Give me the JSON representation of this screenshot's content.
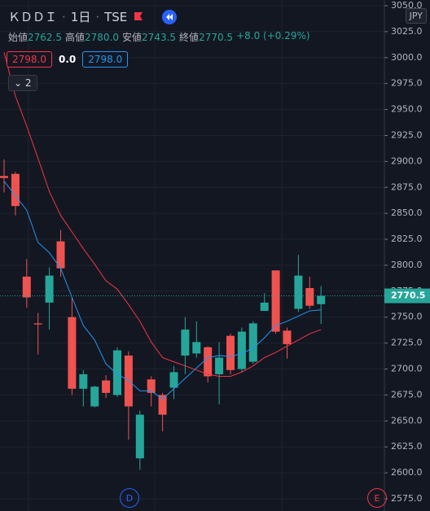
{
  "chart_data": {
    "type": "candlestick",
    "symbol": "ＫＤＤＩ",
    "interval": "1日",
    "exchange": "TSE",
    "ohlc_legend": [
      {
        "label": "始値",
        "value": "2762.5"
      },
      {
        "label": "高値",
        "value": "2780.0"
      },
      {
        "label": "安値",
        "value": "2743.5"
      },
      {
        "label": "終値",
        "value": "2770.5"
      }
    ],
    "change": "+8.0 (+0.29%)",
    "indicator_values": [
      "2798.0",
      "0.0",
      "2798.0"
    ],
    "collapsed_count": "2",
    "currency": "JPY",
    "event_markers": [
      "D",
      "E"
    ],
    "up_color": "#26a69a",
    "down_color": "#ef5350",
    "open": [
      2886,
      2888,
      2789,
      2744,
      2764,
      2823,
      2750,
      2681,
      2664,
      2689,
      2675,
      2713,
      2614,
      2690,
      2675,
      2682,
      2713,
      2715,
      2721,
      2695,
      2732,
      2700,
      2707,
      2756,
      2795,
      2737,
      2758,
      2778,
      2762.5
    ],
    "high": [
      2902,
      2890,
      2806,
      2754,
      2798,
      2834,
      2769,
      2699,
      2684,
      2694,
      2721,
      2717,
      2660,
      2693,
      2677,
      2703,
      2750,
      2746,
      2722,
      2726,
      2734,
      2740,
      2746,
      2773,
      2795,
      2740,
      2810,
      2789,
      2780
    ],
    "low": [
      2870,
      2848,
      2759,
      2714,
      2738,
      2789,
      2675,
      2664,
      2663,
      2672,
      2673,
      2632,
      2603,
      2664,
      2640,
      2671,
      2695,
      2711,
      2687,
      2666,
      2695,
      2697,
      2705,
      2756,
      2734,
      2710,
      2755,
      2758,
      2743.5
    ],
    "close": [
      2884,
      2857,
      2769,
      2743,
      2790,
      2797,
      2681,
      2695,
      2683,
      2677,
      2718,
      2664,
      2656,
      2677,
      2656,
      2697,
      2738,
      2726,
      2693,
      2711,
      2699,
      2736,
      2744,
      2764,
      2736,
      2724,
      2790,
      2761,
      2770.5
    ],
    "moving_averages": [
      {
        "color": "#2196f3",
        "values": [
          2881,
          2867,
          2853,
          2822,
          2812,
          2797,
          2769,
          2742,
          2728,
          2705,
          2695,
          2689,
          2679,
          2679,
          2671,
          2681,
          2691,
          2701,
          2711,
          2713,
          2712,
          2715,
          2720,
          2730,
          2742,
          2746,
          2751,
          2756,
          2757
        ]
      },
      {
        "color": "#f23645",
        "values": [
          3005,
          2963,
          2934,
          2903,
          2871,
          2848,
          2832,
          2816,
          2801,
          2785,
          2777,
          2762,
          2746,
          2726,
          2711,
          2707,
          2703,
          2699,
          2695,
          2693,
          2693,
          2697,
          2703,
          2711,
          2716,
          2722,
          2728,
          2734,
          2738
        ]
      }
    ],
    "last_price": {
      "value": 2770.5,
      "label": "2770.5"
    },
    "ylim": [
      2575,
      3050
    ],
    "yticks": [
      {
        "value": 2575,
        "label": "2575.0"
      },
      {
        "value": 2600,
        "label": "2600.0"
      },
      {
        "value": 2625,
        "label": "2625.0"
      },
      {
        "value": 2650,
        "label": "2650.0"
      },
      {
        "value": 2675,
        "label": "2675.0"
      },
      {
        "value": 2700,
        "label": "2700.0"
      },
      {
        "value": 2725,
        "label": "2725.0"
      },
      {
        "value": 2750,
        "label": "2750.0"
      },
      {
        "value": 2775,
        "label": "2775.0"
      },
      {
        "value": 2800,
        "label": "2800.0"
      },
      {
        "value": 2825,
        "label": "2825.0"
      },
      {
        "value": 2850,
        "label": "2850.0"
      },
      {
        "value": 2875,
        "label": "2875.0"
      },
      {
        "value": 2900,
        "label": "2900.0"
      },
      {
        "value": 2925,
        "label": "2925.0"
      },
      {
        "value": 2950,
        "label": "2950.0"
      },
      {
        "value": 2975,
        "label": "2975.0"
      },
      {
        "value": 3000,
        "label": "3000.0"
      },
      {
        "value": 3025,
        "label": "3025.0"
      },
      {
        "value": 3050,
        "label": "3050.0"
      }
    ],
    "grid": true
  }
}
